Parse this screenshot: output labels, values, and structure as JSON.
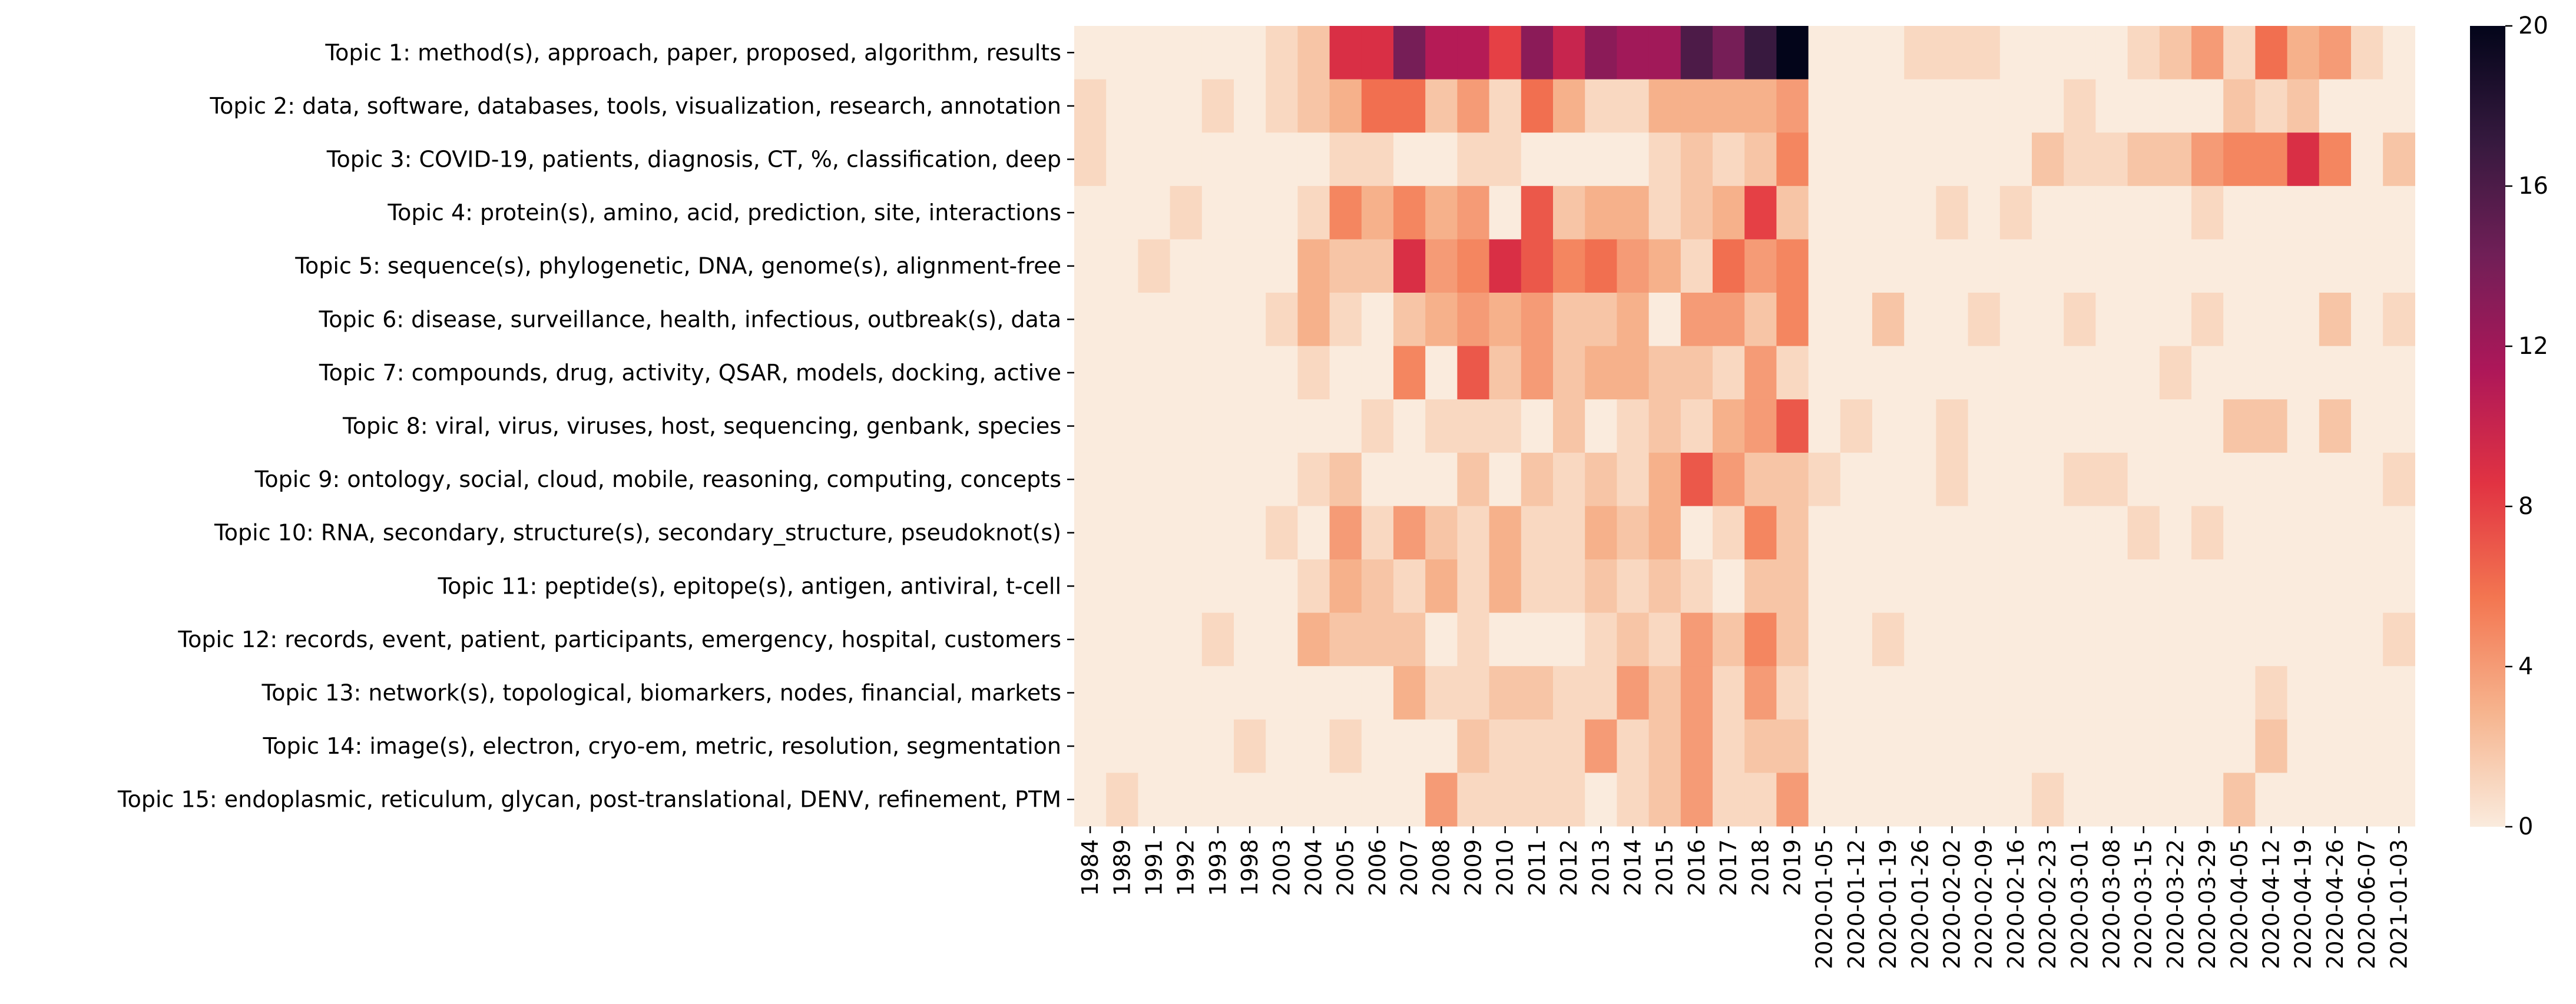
{
  "chart_data": {
    "type": "heatmap",
    "title": "",
    "xlabel": "",
    "ylabel": "",
    "x_categories": [
      "1984",
      "1989",
      "1991",
      "1992",
      "1993",
      "1998",
      "2003",
      "2004",
      "2005",
      "2006",
      "2007",
      "2008",
      "2009",
      "2010",
      "2011",
      "2012",
      "2013",
      "2014",
      "2015",
      "2016",
      "2017",
      "2018",
      "2019",
      "2020-01-05",
      "2020-01-12",
      "2020-01-19",
      "2020-01-26",
      "2020-02-02",
      "2020-02-09",
      "2020-02-16",
      "2020-02-23",
      "2020-03-01",
      "2020-03-08",
      "2020-03-15",
      "2020-03-22",
      "2020-03-29",
      "2020-04-05",
      "2020-04-12",
      "2020-04-19",
      "2020-04-26",
      "2020-06-07",
      "2021-01-03"
    ],
    "y_categories": [
      "Topic 1: method(s), approach, paper, proposed, algorithm, results",
      "Topic 2: data, software, databases, tools, visualization, research, annotation",
      "Topic 3: COVID-19, patients, diagnosis, CT, %, classification, deep",
      "Topic 4: protein(s), amino, acid, prediction, site, interactions",
      "Topic 5: sequence(s), phylogenetic, DNA, genome(s), alignment-free",
      "Topic 6: disease, surveillance, health, infectious, outbreak(s), data",
      "Topic 7: compounds, drug, activity, QSAR, models, docking, active",
      "Topic 8: viral, virus, viruses, host, sequencing, genbank, species",
      "Topic 9: ontology, social, cloud, mobile, reasoning, computing, concepts",
      "Topic 10: RNA, secondary, structure(s), secondary_structure, pseudoknot(s)",
      "Topic 11: peptide(s), epitope(s), antigen, antiviral, t-cell",
      "Topic 12: records, event, patient, participants, emergency, hospital, customers",
      "Topic 13: network(s), topological, biomarkers, nodes, financial, markets",
      "Topic 14: image(s), electron, cryo-em, metric, resolution, segmentation",
      "Topic 15: endoplasmic, reticulum, glycan, post-translational, DENV, refinement, PTM"
    ],
    "values": [
      [
        0,
        0,
        0,
        0,
        0,
        0,
        1,
        2,
        9,
        9,
        14,
        11,
        11,
        8,
        13,
        10,
        13,
        12,
        12,
        16,
        14,
        17,
        20,
        0,
        0,
        0,
        1,
        1,
        1,
        0,
        0,
        0,
        0,
        1,
        2,
        4,
        1,
        6,
        3,
        4,
        1,
        0
      ],
      [
        1,
        0,
        0,
        0,
        1,
        0,
        1,
        2,
        3,
        6,
        6,
        2,
        4,
        1,
        6,
        3,
        1,
        1,
        3,
        3,
        3,
        3,
        4,
        0,
        0,
        0,
        0,
        0,
        0,
        0,
        0,
        1,
        0,
        0,
        0,
        0,
        2,
        1,
        2,
        0,
        0,
        0
      ],
      [
        1,
        0,
        0,
        0,
        0,
        0,
        0,
        0,
        1,
        1,
        0,
        0,
        1,
        1,
        0,
        0,
        0,
        0,
        1,
        2,
        1,
        2,
        5,
        0,
        0,
        0,
        0,
        0,
        0,
        0,
        2,
        1,
        1,
        2,
        2,
        4,
        5,
        5,
        9,
        5,
        0,
        2
      ],
      [
        0,
        0,
        0,
        1,
        0,
        0,
        0,
        1,
        5,
        3,
        5,
        3,
        4,
        0,
        7,
        2,
        3,
        3,
        1,
        2,
        3,
        8,
        2,
        0,
        0,
        0,
        0,
        1,
        0,
        1,
        0,
        0,
        0,
        0,
        0,
        1,
        0,
        0,
        0,
        0,
        0,
        0
      ],
      [
        0,
        0,
        1,
        0,
        0,
        0,
        0,
        3,
        2,
        2,
        9,
        4,
        5,
        9,
        7,
        5,
        6,
        4,
        3,
        1,
        6,
        4,
        5,
        0,
        0,
        0,
        0,
        0,
        0,
        0,
        0,
        0,
        0,
        0,
        0,
        0,
        0,
        0,
        0,
        0,
        0,
        0
      ],
      [
        0,
        0,
        0,
        0,
        0,
        0,
        1,
        3,
        1,
        0,
        2,
        3,
        4,
        3,
        4,
        2,
        2,
        3,
        0,
        4,
        4,
        2,
        5,
        0,
        0,
        2,
        0,
        0,
        1,
        0,
        0,
        1,
        0,
        0,
        0,
        1,
        0,
        0,
        0,
        2,
        0,
        1
      ],
      [
        0,
        0,
        0,
        0,
        0,
        0,
        0,
        1,
        0,
        0,
        5,
        0,
        7,
        2,
        4,
        2,
        3,
        3,
        2,
        2,
        1,
        4,
        1,
        0,
        0,
        0,
        0,
        0,
        0,
        0,
        0,
        0,
        0,
        0,
        1,
        0,
        0,
        0,
        0,
        0,
        0,
        0
      ],
      [
        0,
        0,
        0,
        0,
        0,
        0,
        0,
        0,
        0,
        1,
        0,
        1,
        1,
        1,
        0,
        2,
        0,
        1,
        2,
        1,
        3,
        4,
        7,
        0,
        1,
        0,
        0,
        1,
        0,
        0,
        0,
        0,
        0,
        0,
        0,
        0,
        2,
        2,
        0,
        2,
        0,
        0
      ],
      [
        0,
        0,
        0,
        0,
        0,
        0,
        0,
        1,
        2,
        0,
        0,
        0,
        2,
        0,
        2,
        1,
        2,
        1,
        3,
        7,
        4,
        2,
        2,
        1,
        0,
        0,
        0,
        1,
        0,
        0,
        0,
        1,
        1,
        0,
        0,
        0,
        0,
        0,
        0,
        0,
        0,
        1
      ],
      [
        0,
        0,
        0,
        0,
        0,
        0,
        1,
        0,
        4,
        1,
        4,
        2,
        1,
        3,
        1,
        1,
        3,
        2,
        3,
        0,
        1,
        5,
        2,
        0,
        0,
        0,
        0,
        0,
        0,
        0,
        0,
        0,
        0,
        1,
        0,
        1,
        0,
        0,
        0,
        0,
        0,
        0
      ],
      [
        0,
        0,
        0,
        0,
        0,
        0,
        0,
        1,
        3,
        2,
        1,
        3,
        1,
        3,
        1,
        1,
        2,
        1,
        2,
        1,
        0,
        2,
        2,
        0,
        0,
        0,
        0,
        0,
        0,
        0,
        0,
        0,
        0,
        0,
        0,
        0,
        0,
        0,
        0,
        0,
        0,
        0
      ],
      [
        0,
        0,
        0,
        0,
        1,
        0,
        0,
        3,
        2,
        2,
        2,
        0,
        1,
        0,
        0,
        0,
        1,
        2,
        1,
        4,
        2,
        5,
        2,
        0,
        0,
        1,
        0,
        0,
        0,
        0,
        0,
        0,
        0,
        0,
        0,
        0,
        0,
        0,
        0,
        0,
        0,
        1
      ],
      [
        0,
        0,
        0,
        0,
        0,
        0,
        0,
        0,
        0,
        0,
        3,
        1,
        1,
        2,
        2,
        1,
        1,
        4,
        2,
        4,
        1,
        4,
        1,
        0,
        0,
        0,
        0,
        0,
        0,
        0,
        0,
        0,
        0,
        0,
        0,
        0,
        0,
        1,
        0,
        0,
        0,
        0
      ],
      [
        0,
        0,
        0,
        0,
        0,
        1,
        0,
        0,
        1,
        0,
        0,
        0,
        2,
        1,
        1,
        1,
        4,
        1,
        2,
        4,
        1,
        2,
        2,
        0,
        0,
        0,
        0,
        0,
        0,
        0,
        0,
        0,
        0,
        0,
        0,
        0,
        0,
        2,
        0,
        0,
        0,
        0
      ],
      [
        0,
        1,
        0,
        0,
        0,
        0,
        0,
        0,
        0,
        0,
        0,
        4,
        1,
        1,
        1,
        1,
        0,
        1,
        2,
        4,
        1,
        1,
        4,
        0,
        0,
        0,
        0,
        0,
        0,
        0,
        1,
        0,
        0,
        0,
        0,
        0,
        2,
        0,
        0,
        0,
        0,
        0
      ]
    ],
    "colorbar": {
      "min": 0,
      "max": 20,
      "ticks": [
        "0",
        "4",
        "8",
        "12",
        "16",
        "20"
      ]
    },
    "colormap_stops": [
      "#faebdd",
      "#f6b48e",
      "#f37651",
      "#e13342",
      "#ad1759",
      "#701f57",
      "#35193e",
      "#03051a"
    ]
  }
}
